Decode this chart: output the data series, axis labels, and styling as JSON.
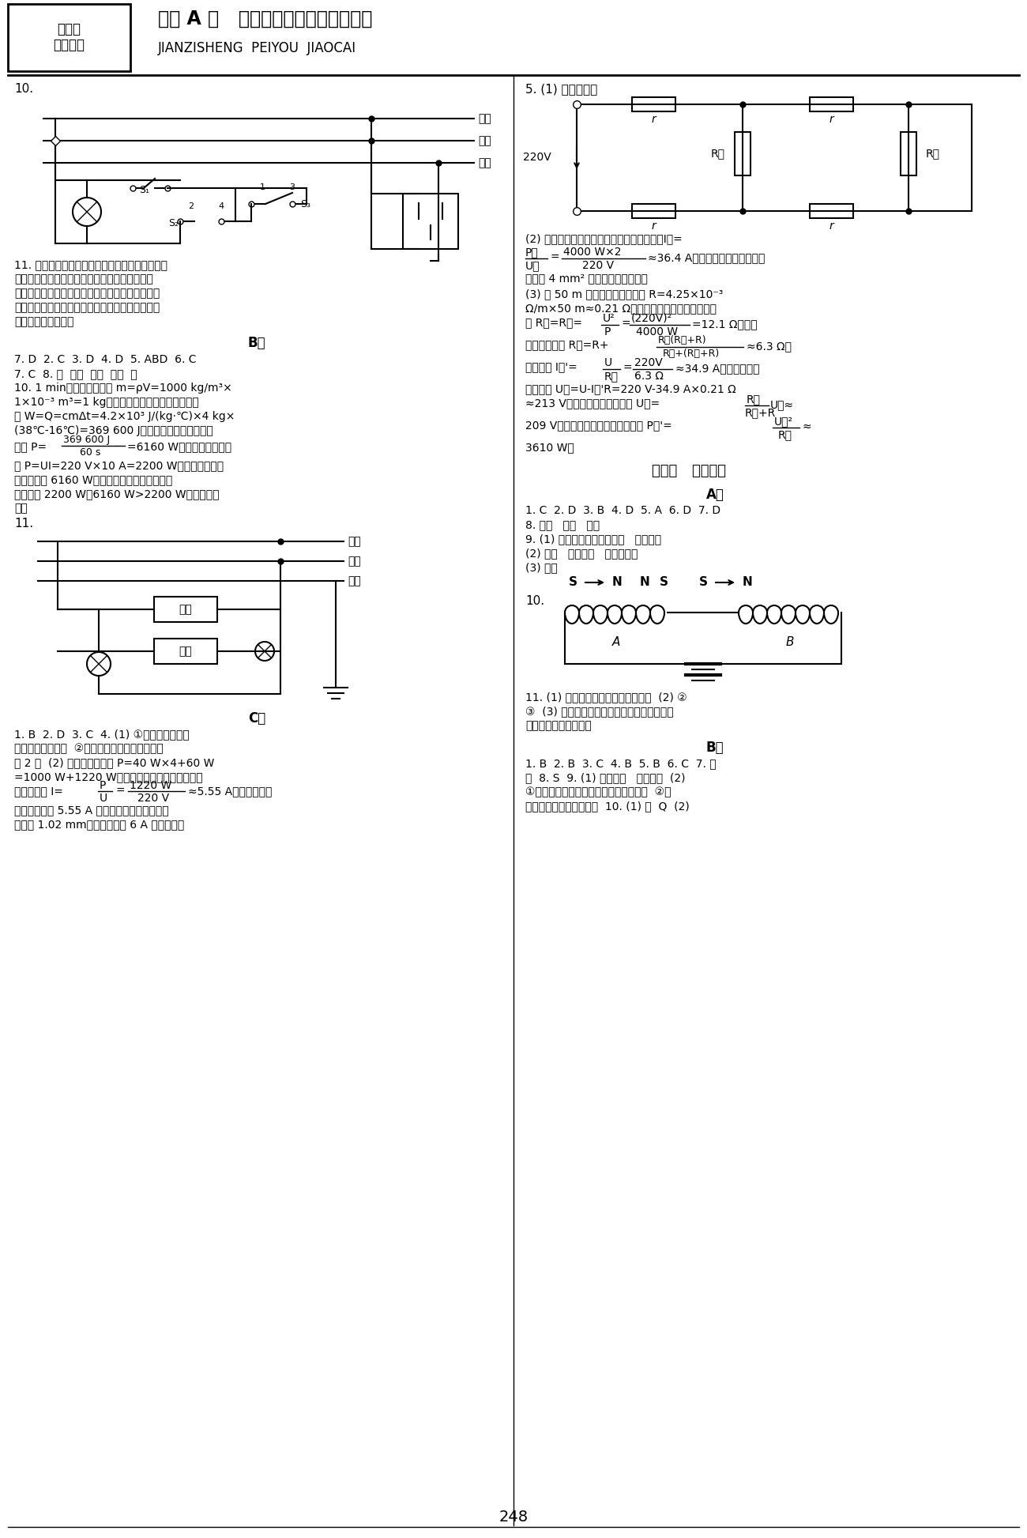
{
  "page_num": "248",
  "bg_color": "#ffffff",
  "text_color": "#000000",
  "header_title": "物理 A 版   九年级全一册（适用人教）",
  "header_sub": "JIANZISHENG  PEIYOU  JIAOCAI",
  "left_col": {
    "q10_label": "10.",
    "circuit1_labels": [
      "火线",
      "零线",
      "地线"
    ],
    "q11_label": "11.",
    "b_group": "B组",
    "c_group": "C组"
  },
  "right_col": {
    "q5_label": "5. (1) 如图所示：",
    "q5_circuit_labels": [
      "220V",
      "R甲",
      "R乙",
      "r",
      "r",
      "r",
      "r"
    ],
    "q10_section": "第十讲   磁与磁场",
    "a_group": "A组",
    "b_group": "B组",
    "magnet_labels": [
      "S",
      "N",
      "N",
      "S",
      "S",
      "N"
    ],
    "coil_labels": [
      "A",
      "B"
    ]
  }
}
